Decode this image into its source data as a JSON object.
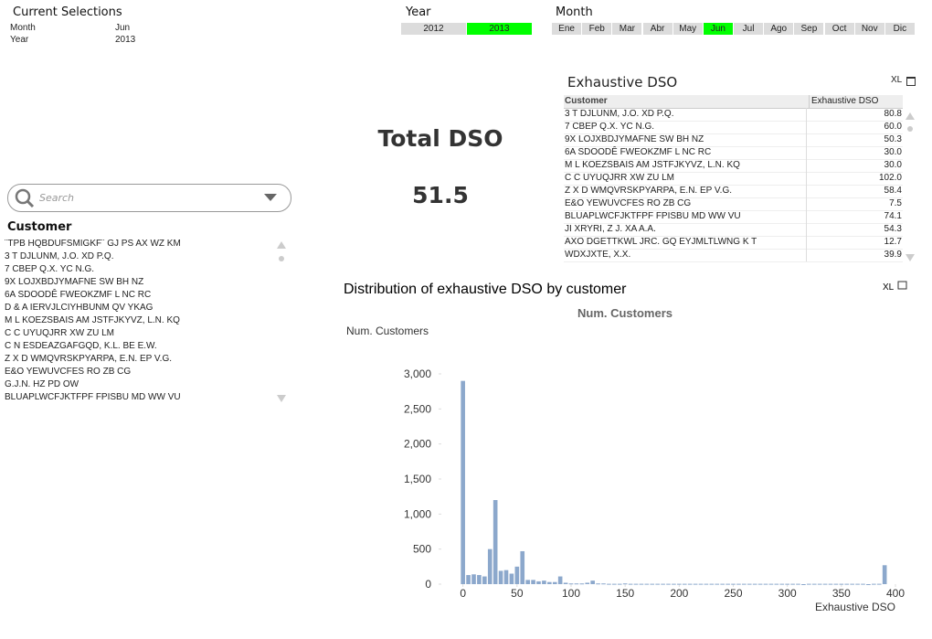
{
  "current_selections": {
    "title": "Current Selections",
    "rows": [
      {
        "field": "Month",
        "value": "Jun"
      },
      {
        "field": "Year",
        "value": "2013"
      }
    ]
  },
  "year_list": {
    "title": "Year",
    "items": [
      "2012",
      "2013"
    ],
    "selected": 1,
    "selected_color": "#00ff00"
  },
  "month_list": {
    "title": "Month",
    "items": [
      "Ene",
      "Feb",
      "Mar",
      "Abr",
      "May",
      "Jun",
      "Jul",
      "Ago",
      "Sep",
      "Oct",
      "Nov",
      "Dic"
    ],
    "selected": 5,
    "selected_color": "#00ff00"
  },
  "exhaustive_dso": {
    "title": "Exhaustive DSO",
    "button": "XL",
    "columns": [
      "Customer",
      "Exhaustive DSO"
    ],
    "rows": [
      [
        "3 T  DJLUNM, J.O. XD P.Q.",
        "80.8"
      ],
      [
        "7 CBEP Q.X. YC N.G.",
        "60.0"
      ],
      [
        "9X LOJXBDJYMAFNE SW BH NZ",
        "50.3"
      ],
      [
        "6A SDOODÊ FWEOKZMF L NC RC",
        "30.0"
      ],
      [
        "M L KOEZSBAIS AM JSTFJKYVZ, L.N. KQ",
        "30.0"
      ],
      [
        "C C UYUQJRR XW ZU LM",
        "102.0"
      ],
      [
        "Z X D WMQVRSKPYARPA, E.N. EP V.G.",
        "58.4"
      ],
      [
        "E&O YEWUVCFES RO ZB CG",
        "7.5"
      ],
      [
        "BLUAPLWCFJKTFPF FPISBU MD WW VU",
        "74.1"
      ],
      [
        "JI XRYRI, Z J. XA A.A.",
        "54.3"
      ],
      [
        "AXO DGETTKWL JRC. GQ EYJMLTLWNG K T",
        "12.7"
      ],
      [
        "WDXJXTE, X.X.",
        "39.9"
      ]
    ]
  },
  "total_dso": {
    "title": "Total DSO",
    "value": 51.5
  },
  "search": {
    "placeholder": "Search"
  },
  "customer_list": {
    "title": "Customer",
    "items": [
      "¨TPB HQBDUFSMIGKF¨ GJ PS  AX WZ KM",
      "3 T  DJLUNM, J.O. XD P.Q.",
      "7 CBEP Q.X. YC N.G.",
      "9X LOJXBDJYMAFNE SW BH NZ",
      "6A SDOODÊ FWEOKZMF L NC RC",
      "D & A IERVJLCIYHBUNM QV YKAG",
      "M L KOEZSBAIS AM JSTFJKYVZ, L.N. KQ",
      "C C UYUQJRR XW ZU LM",
      "C N ESDEAZGAFGQD, K.L. BE E.W.",
      "Z X D WMQVRSKPYARPA, E.N. EP V.G.",
      "E&O YEWUVCFES RO ZB CG",
      "G.J.N. HZ PD OW",
      "BLUAPLWCFJKTFPF FPISBU MD WW VU"
    ]
  },
  "chart_panel": {
    "title": "Distribution of exhaustive DSO by customer",
    "button": "XL"
  },
  "chart_data": {
    "type": "bar",
    "title": "Num. Customers",
    "y_label": "Num. Customers",
    "x_label": "Exhaustive DSO",
    "color": "#8ca8cc",
    "x": [
      0,
      5,
      10,
      15,
      20,
      25,
      30,
      35,
      40,
      45,
      50,
      55,
      60,
      65,
      70,
      75,
      80,
      85,
      90,
      95,
      100,
      105,
      110,
      115,
      120,
      125,
      130,
      135,
      140,
      145,
      150,
      155,
      160,
      165,
      170,
      175,
      180,
      185,
      190,
      195,
      200,
      205,
      210,
      215,
      220,
      225,
      230,
      235,
      240,
      245,
      250,
      255,
      260,
      265,
      270,
      275,
      280,
      285,
      290,
      295,
      300,
      305,
      310,
      315,
      320,
      325,
      330,
      335,
      340,
      345,
      350,
      355,
      360,
      365,
      370,
      375,
      380,
      385,
      390
    ],
    "values": [
      2900,
      130,
      140,
      130,
      110,
      500,
      1200,
      190,
      200,
      150,
      250,
      470,
      60,
      60,
      40,
      50,
      30,
      30,
      110,
      20,
      10,
      10,
      10,
      20,
      50,
      10,
      10,
      5,
      5,
      5,
      10,
      5,
      5,
      5,
      5,
      5,
      5,
      5,
      5,
      5,
      5,
      5,
      5,
      5,
      5,
      5,
      5,
      5,
      5,
      5,
      5,
      5,
      5,
      5,
      5,
      5,
      5,
      5,
      5,
      5,
      5,
      5,
      5,
      0,
      5,
      5,
      5,
      5,
      5,
      5,
      5,
      5,
      5,
      5,
      5,
      0,
      5,
      5,
      270
    ],
    "xlim": [
      -20,
      400
    ],
    "xticks": [
      0,
      50,
      100,
      150,
      200,
      250,
      300,
      350,
      400
    ],
    "ylim": [
      0,
      3000
    ],
    "yticks": [
      0,
      500,
      {
        "value": 1000,
        "label": "1,000"
      },
      {
        "value": 1500,
        "label": "1,500"
      },
      {
        "value": 2000,
        "label": "2,000"
      },
      {
        "value": 2500,
        "label": "2,500"
      },
      {
        "value": 3000,
        "label": "3,000"
      }
    ],
    "grid": false
  }
}
